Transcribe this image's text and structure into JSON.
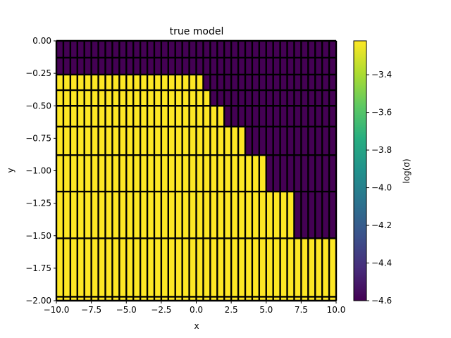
{
  "chart_data": {
    "type": "heatmap",
    "title": "true model",
    "xlabel": "x",
    "ylabel": "y",
    "xlim": [
      -10,
      10
    ],
    "ylim": [
      -2,
      0
    ],
    "xticks": [
      -10,
      -7.5,
      -5,
      -2.5,
      0,
      2.5,
      5,
      7.5,
      10
    ],
    "xtick_labels": [
      "−10.0",
      "−7.5",
      "−5.0",
      "−2.5",
      "0.0",
      "2.5",
      "5.0",
      "7.5",
      "10.0"
    ],
    "yticks": [
      0,
      -0.25,
      -0.5,
      -0.75,
      -1,
      -1.25,
      -1.5,
      -1.75,
      -2
    ],
    "ytick_labels": [
      "0.00",
      "−0.25",
      "−0.50",
      "−0.75",
      "−1.00",
      "−1.25",
      "−1.50",
      "−1.75",
      "−2.00"
    ],
    "x_cell_edges": [
      -10,
      -9.5,
      -9,
      -8.5,
      -8,
      -7.5,
      -7,
      -6.5,
      -6,
      -5.5,
      -5,
      -4.5,
      -4,
      -3.5,
      -3,
      -2.5,
      -2,
      -1.5,
      -1,
      -0.5,
      0,
      0.5,
      1,
      1.5,
      2,
      2.5,
      3,
      3.5,
      4,
      4.5,
      5,
      5.5,
      6,
      6.5,
      7,
      7.5,
      8,
      8.5,
      9,
      9.5,
      10
    ],
    "layer_rows": [
      {
        "top": 0.0,
        "bottom": -0.13,
        "boundary_x": -10
      },
      {
        "top": -0.13,
        "bottom": -0.26,
        "boundary_x": -10
      },
      {
        "top": -0.26,
        "bottom": -0.38,
        "boundary_x": 0.5
      },
      {
        "top": -0.38,
        "bottom": -0.5,
        "boundary_x": 1.0
      },
      {
        "top": -0.5,
        "bottom": -0.66,
        "boundary_x": 2.0
      },
      {
        "top": -0.66,
        "bottom": -0.88,
        "boundary_x": 3.5
      },
      {
        "top": -0.88,
        "bottom": -1.16,
        "boundary_x": 5.0
      },
      {
        "top": -1.16,
        "bottom": -1.52,
        "boundary_x": 7.0
      },
      {
        "top": -1.52,
        "bottom": -1.97,
        "boundary_x": 10
      },
      {
        "top": -1.97,
        "bottom": -2.0,
        "boundary_x": 10
      }
    ],
    "values": {
      "high": -3.22,
      "low": -4.6
    },
    "cells_note_values": [
      "yellow cells: log(sigma) = -3.22 (high)",
      "purple cells: log(sigma) = -4.6 (low)"
    ],
    "colorbar": {
      "label": "log(σ)",
      "colormap": "viridis",
      "vmin": -4.6,
      "vmax": -3.22,
      "ticks": [
        -3.4,
        -3.6,
        -3.8,
        -4.0,
        -4.2,
        -4.4,
        -4.6
      ],
      "tick_labels": [
        "−3.4",
        "−3.6",
        "−3.8",
        "−4.0",
        "−4.2",
        "−4.4",
        "−4.6"
      ]
    },
    "colors": {
      "high": "#fde725",
      "low": "#440154",
      "mesh": "#000000"
    }
  }
}
